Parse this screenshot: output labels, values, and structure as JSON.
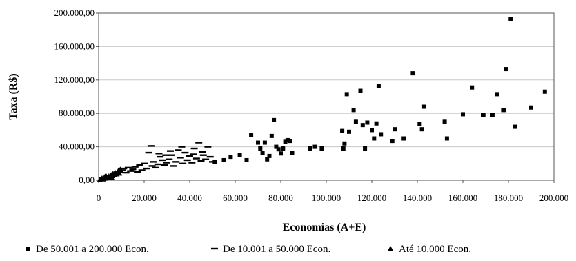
{
  "chart_data": {
    "type": "scatter",
    "xlabel": "Economias (A+E)",
    "ylabel": "Taxa (R$)",
    "xlim": [
      0,
      200000
    ],
    "ylim": [
      0,
      200000
    ],
    "x_ticks": [
      0,
      20000,
      40000,
      60000,
      80000,
      100000,
      120000,
      140000,
      160000,
      180000,
      200000
    ],
    "x_tick_labels": [
      "0",
      "20.000",
      "40.000",
      "60.000",
      "80.000",
      "100.000",
      "120.000",
      "140.000",
      "160.000",
      "180.000",
      "200.000"
    ],
    "y_ticks": [
      0,
      40000,
      80000,
      120000,
      160000,
      200000
    ],
    "y_tick_labels": [
      "0,00",
      "40.000,00",
      "80.000,00",
      "120.000,00",
      "160.000,00",
      "200.000,00"
    ],
    "grid": "horizontal",
    "legend_position": "bottom",
    "series": [
      {
        "name": "De 50.001 a 200.000 Econ.",
        "marker": "square",
        "color": "#000000",
        "points": [
          [
            51000,
            22000
          ],
          [
            55000,
            24000
          ],
          [
            58000,
            28000
          ],
          [
            62000,
            30000
          ],
          [
            65000,
            24000
          ],
          [
            67000,
            54000
          ],
          [
            70000,
            45000
          ],
          [
            71000,
            38000
          ],
          [
            72000,
            33000
          ],
          [
            73000,
            45000
          ],
          [
            74000,
            25000
          ],
          [
            75000,
            29000
          ],
          [
            76000,
            53000
          ],
          [
            77000,
            72000
          ],
          [
            78000,
            40000
          ],
          [
            79000,
            37000
          ],
          [
            80000,
            32000
          ],
          [
            81000,
            38000
          ],
          [
            82000,
            46000
          ],
          [
            83000,
            48000
          ],
          [
            84000,
            47000
          ],
          [
            85000,
            33000
          ],
          [
            93000,
            38000
          ],
          [
            95000,
            40000
          ],
          [
            98000,
            38000
          ],
          [
            107000,
            59000
          ],
          [
            107500,
            38000
          ],
          [
            108000,
            44000
          ],
          [
            109000,
            103000
          ],
          [
            110000,
            58000
          ],
          [
            112000,
            84000
          ],
          [
            113000,
            70000
          ],
          [
            115000,
            107000
          ],
          [
            116000,
            66000
          ],
          [
            117000,
            38000
          ],
          [
            118000,
            69000
          ],
          [
            120000,
            60000
          ],
          [
            121000,
            50000
          ],
          [
            122000,
            68000
          ],
          [
            123000,
            113000
          ],
          [
            124000,
            55000
          ],
          [
            129000,
            47000
          ],
          [
            130000,
            61000
          ],
          [
            134000,
            50000
          ],
          [
            138000,
            128000
          ],
          [
            141000,
            67000
          ],
          [
            142000,
            61000
          ],
          [
            143000,
            88000
          ],
          [
            152000,
            70000
          ],
          [
            153000,
            50000
          ],
          [
            160000,
            79000
          ],
          [
            164000,
            111000
          ],
          [
            169000,
            78000
          ],
          [
            173000,
            78000
          ],
          [
            175000,
            103000
          ],
          [
            178000,
            84000
          ],
          [
            179000,
            133000
          ],
          [
            181000,
            193000
          ],
          [
            183000,
            64000
          ],
          [
            190000,
            87000
          ],
          [
            196000,
            106000
          ]
        ]
      },
      {
        "name": "De 10.001 a 50.000 Econ.",
        "marker": "dash",
        "color": "#000000",
        "points": [
          [
            10500,
            12000
          ],
          [
            11000,
            14000
          ],
          [
            12000,
            9000
          ],
          [
            13000,
            15000
          ],
          [
            14000,
            11000
          ],
          [
            15000,
            13000
          ],
          [
            16000,
            16000
          ],
          [
            17000,
            10000
          ],
          [
            18000,
            18000
          ],
          [
            19000,
            12000
          ],
          [
            20000,
            20000
          ],
          [
            21000,
            14000
          ],
          [
            22000,
            33000
          ],
          [
            23000,
            41000
          ],
          [
            23500,
            17000
          ],
          [
            24000,
            22000
          ],
          [
            25000,
            15000
          ],
          [
            26000,
            19000
          ],
          [
            27000,
            28000
          ],
          [
            28000,
            24000
          ],
          [
            29000,
            18000
          ],
          [
            30000,
            21000
          ],
          [
            31000,
            25000
          ],
          [
            32000,
            30000
          ],
          [
            33000,
            17000
          ],
          [
            34000,
            22000
          ],
          [
            35000,
            36000
          ],
          [
            36000,
            27000
          ],
          [
            37000,
            20000
          ],
          [
            38000,
            33000
          ],
          [
            39000,
            24000
          ],
          [
            40000,
            29000
          ],
          [
            41000,
            21000
          ],
          [
            42000,
            38000
          ],
          [
            43000,
            26000
          ],
          [
            44000,
            45000
          ],
          [
            45000,
            23000
          ],
          [
            46000,
            30000
          ],
          [
            47000,
            25000
          ],
          [
            48000,
            40000
          ],
          [
            49000,
            28000
          ],
          [
            50000,
            22000
          ],
          [
            26500,
            32000
          ],
          [
            31500,
            35000
          ],
          [
            36500,
            40000
          ],
          [
            41500,
            31000
          ],
          [
            45500,
            34000
          ],
          [
            29500,
            30000
          ]
        ]
      },
      {
        "name": "Até 10.000 Econ.",
        "marker": "triangle",
        "color": "#000000",
        "points": [
          [
            500,
            500
          ],
          [
            1000,
            1500
          ],
          [
            1500,
            2500
          ],
          [
            2000,
            1000
          ],
          [
            2500,
            3500
          ],
          [
            3000,
            2000
          ],
          [
            3500,
            4000
          ],
          [
            4000,
            3000
          ],
          [
            4500,
            5000
          ],
          [
            5000,
            4000
          ],
          [
            5500,
            6500
          ],
          [
            6000,
            5000
          ],
          [
            6500,
            7000
          ],
          [
            7000,
            6000
          ],
          [
            7500,
            8500
          ],
          [
            8000,
            7000
          ],
          [
            8500,
            10500
          ],
          [
            9000,
            9000
          ],
          [
            9500,
            13000
          ],
          [
            10000,
            11000
          ],
          [
            3200,
            5500
          ],
          [
            5800,
            3000
          ],
          [
            7200,
            9500
          ],
          [
            8800,
            12000
          ],
          [
            9200,
            8000
          ],
          [
            2800,
            4500
          ],
          [
            6300,
            8000
          ]
        ]
      }
    ]
  }
}
